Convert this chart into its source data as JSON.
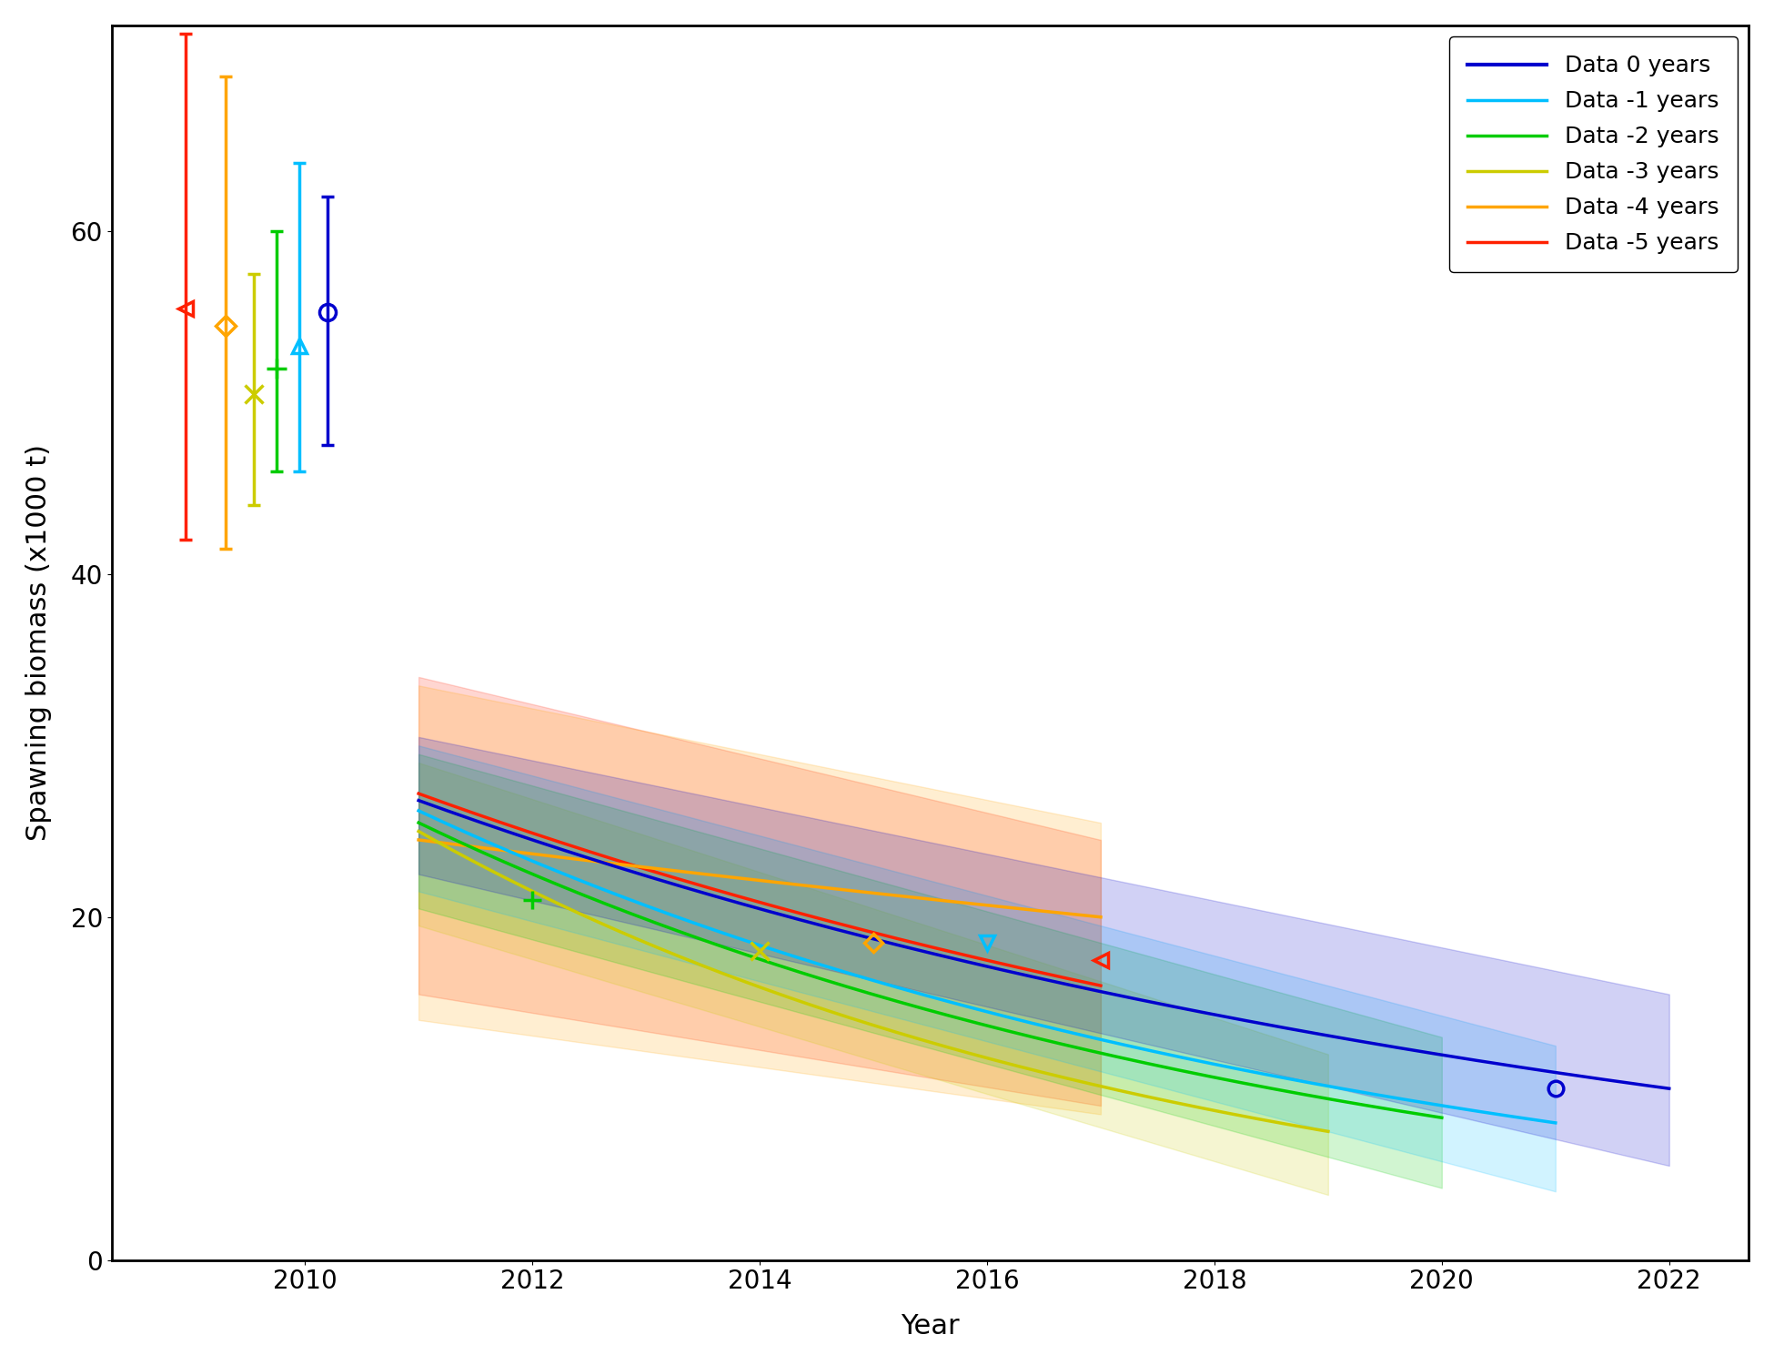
{
  "colors": {
    "0": "#0000CD",
    "m1": "#00BFFF",
    "m2": "#00CC00",
    "m3": "#CCCC00",
    "m4": "#FFA500",
    "m5": "#FF2000"
  },
  "legend_labels": [
    "Data 0 years",
    "Data -1 years",
    "Data -2 years",
    "Data -3 years",
    "Data -4 years",
    "Data -5 years"
  ],
  "xlabel": "Year",
  "ylabel": "Spawning biomass (x1000 t)",
  "xlim": [
    2008.3,
    2022.7
  ],
  "ylim": [
    0,
    72
  ],
  "yticks": [
    0,
    20,
    40,
    60
  ],
  "xticks": [
    2010,
    2012,
    2014,
    2016,
    2018,
    2020,
    2022
  ],
  "background_color": "#ffffff",
  "axis_fontsize": 22,
  "tick_fontsize": 20,
  "legend_fontsize": 18,
  "band_alpha": 0.18,
  "line_width": 2.5
}
